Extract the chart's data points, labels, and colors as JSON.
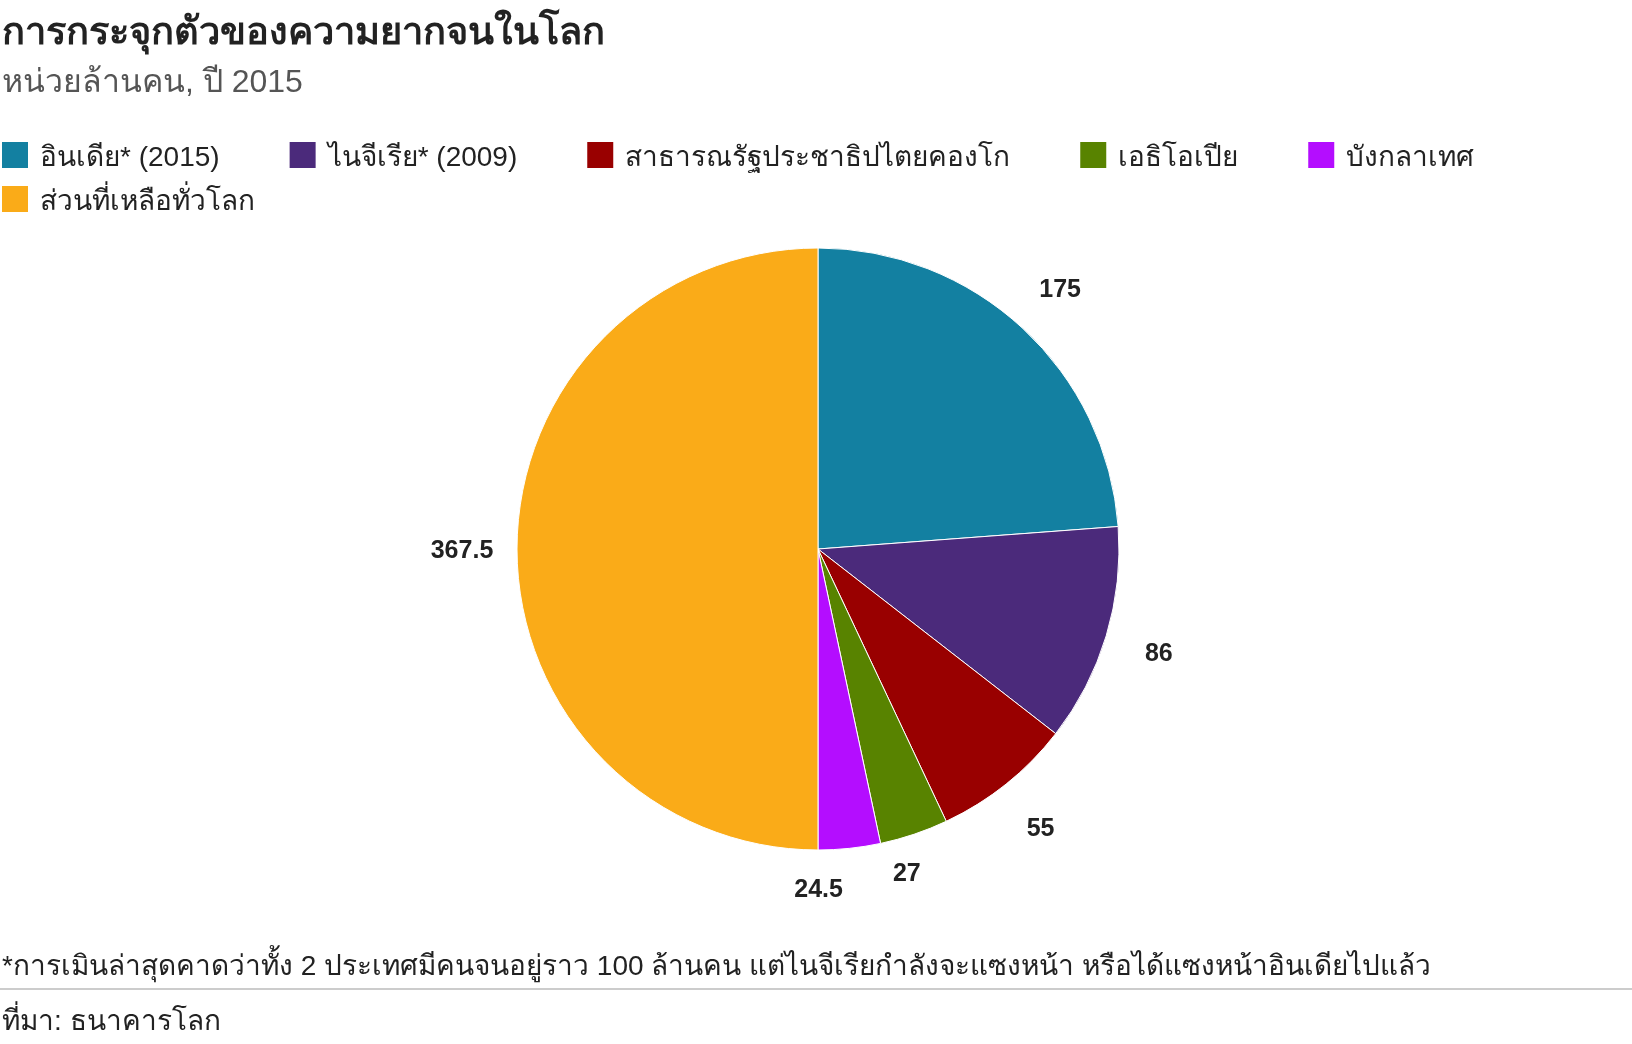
{
  "chart_data": {
    "type": "pie",
    "title": "การกระจุกตัวของความยากจนในโลก",
    "subtitle": "หน่วยล้านคน, ปี 2015",
    "categories": [
      "อินเดีย* (2015)",
      "ไนจีเรีย* (2009)",
      "สาธารณรัฐประชาธิปไตยคองโก",
      "เอธิโอเปีย",
      "บังกลาเทศ",
      "ส่วนที่เหลือทั่วโลก"
    ],
    "values": [
      175,
      86,
      55,
      27,
      24.5,
      367.5
    ],
    "colors": [
      "#1380a1",
      "#4b2a7b",
      "#990000",
      "#588300",
      "#b40dff",
      "#faab18"
    ],
    "data_labels": true,
    "legend": "top",
    "annotations": [
      "*การเมินล่าสุดคาดว่าทั้ง 2 ประเทศมีคนจนอยู่ราว 100 ล้านคน แต่ไนจีเรียกำลังจะแซงหน้า หรือได้แซงหน้าอินเดียไปแล้ว",
      "ที่มา: ธนาคารโลก"
    ]
  }
}
